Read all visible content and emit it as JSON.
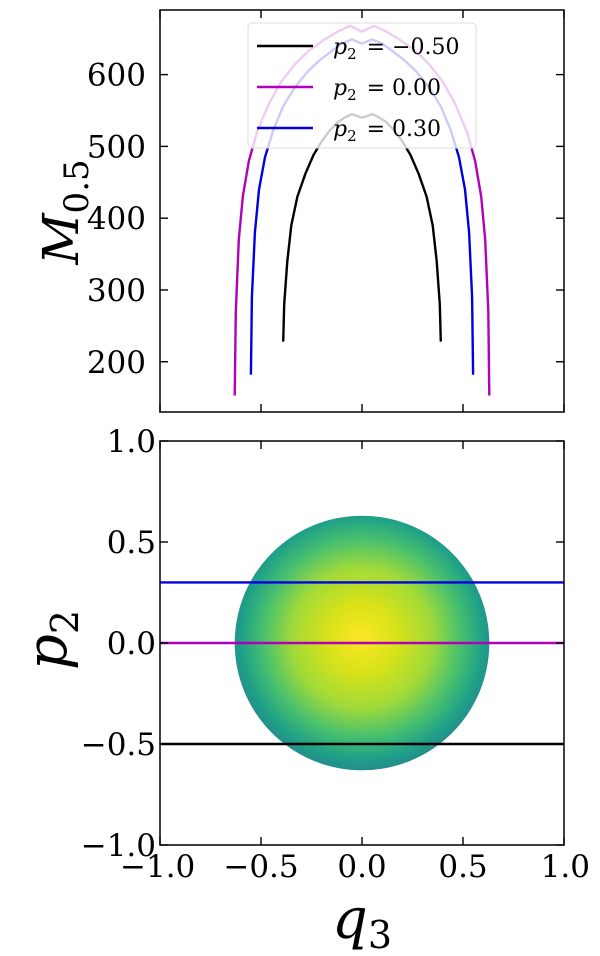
{
  "chart_data": [
    {
      "type": "line",
      "xlabel": "",
      "ylabel": "M",
      "ylabel_sub": "0.5",
      "xlim": [
        -1.0,
        1.0
      ],
      "ylim": [
        130,
        690
      ],
      "yticks": [
        "200",
        "300",
        "400",
        "500",
        "600"
      ],
      "ytick_values": [
        200,
        300,
        400,
        500,
        600
      ],
      "legend_position": "top-center",
      "series": [
        {
          "name": "p",
          "name_sub": "2",
          "name_value": "= −0.50",
          "color": "#000000",
          "x": [
            -0.39,
            -0.385,
            -0.37,
            -0.35,
            -0.32,
            -0.28,
            -0.24,
            -0.2,
            -0.16,
            -0.12,
            -0.08,
            -0.05,
            0.0,
            0.05,
            0.08,
            0.12,
            0.16,
            0.2,
            0.24,
            0.28,
            0.32,
            0.35,
            0.37,
            0.385,
            0.39
          ],
          "y": [
            228,
            280,
            340,
            390,
            430,
            462,
            488,
            507,
            522,
            534,
            541,
            545,
            540,
            545,
            541,
            534,
            522,
            507,
            488,
            462,
            430,
            390,
            340,
            280,
            228
          ]
        },
        {
          "name": "p",
          "name_sub": "2",
          "name_value": "= 0.00",
          "color": "#b000b8",
          "x": [
            -0.63,
            -0.625,
            -0.61,
            -0.59,
            -0.56,
            -0.52,
            -0.46,
            -0.4,
            -0.33,
            -0.26,
            -0.19,
            -0.12,
            -0.06,
            0.0,
            0.06,
            0.12,
            0.19,
            0.26,
            0.33,
            0.4,
            0.46,
            0.52,
            0.56,
            0.59,
            0.61,
            0.625,
            0.63
          ],
          "y": [
            153,
            270,
            370,
            430,
            480,
            520,
            560,
            590,
            615,
            634,
            648,
            660,
            668,
            660,
            668,
            660,
            648,
            634,
            615,
            590,
            560,
            520,
            480,
            430,
            370,
            270,
            153
          ]
        },
        {
          "name": "p",
          "name_sub": "2",
          "name_value": "= 0.30",
          "color": "#0000e0",
          "x": [
            -0.55,
            -0.545,
            -0.53,
            -0.51,
            -0.48,
            -0.44,
            -0.39,
            -0.33,
            -0.27,
            -0.21,
            -0.15,
            -0.1,
            -0.05,
            0.0,
            0.05,
            0.1,
            0.15,
            0.21,
            0.27,
            0.33,
            0.39,
            0.44,
            0.48,
            0.51,
            0.53,
            0.545,
            0.55
          ],
          "y": [
            182,
            290,
            380,
            440,
            485,
            522,
            556,
            583,
            604,
            620,
            633,
            643,
            649,
            643,
            649,
            643,
            633,
            620,
            604,
            583,
            556,
            522,
            485,
            440,
            380,
            290,
            182
          ]
        }
      ]
    },
    {
      "type": "heatmap",
      "xlabel": "q",
      "xlabel_sub": "3",
      "ylabel": "p",
      "ylabel_sub": "2",
      "xlim": [
        -1.0,
        1.0
      ],
      "ylim": [
        -1.0,
        1.0
      ],
      "xticks": [
        "−1.0",
        "−0.5",
        "0.0",
        "0.5",
        "1.0"
      ],
      "xtick_values": [
        -1.0,
        -0.5,
        0.0,
        0.5,
        1.0
      ],
      "yticks": [
        "−1.0",
        "−0.5",
        "0.0",
        "0.5",
        "1.0"
      ],
      "ytick_values": [
        -1.0,
        -0.5,
        0.0,
        0.5,
        1.0
      ],
      "region": {
        "shape": "disk",
        "center": [
          0.0,
          0.0
        ],
        "radius": 0.63,
        "colormap": [
          "#fde725",
          "#d8e219",
          "#a0da39",
          "#4ac16d",
          "#1fa187",
          "#277f8e"
        ]
      },
      "hlines": [
        {
          "y": 0.3,
          "color": "#0000e0"
        },
        {
          "y": 0.0,
          "color": "#b000b8"
        },
        {
          "y": -0.5,
          "color": "#000000"
        }
      ]
    }
  ]
}
